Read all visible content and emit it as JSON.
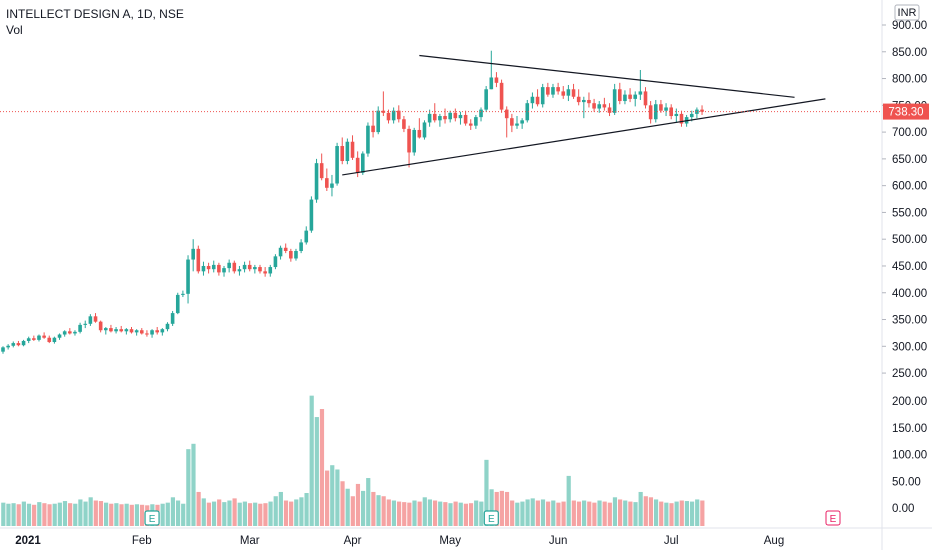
{
  "header": {
    "symbol_line": "INTELLECT DESIGN A, 1D, NSE",
    "volume_label": "Vol"
  },
  "currency_label": "INR",
  "last_price_label": "738.30",
  "event_marker_label": "E",
  "colors": {
    "up": "#26a69a",
    "down": "#ef5350",
    "up_vol": "#8fd3c8",
    "down_vol": "#f5a3a3",
    "price_line": "#ef5350",
    "trend": "#131722",
    "event": "#26a69a",
    "event_future": "#e91e63"
  },
  "chart_data": {
    "type": "candlestick",
    "title": "INTELLECT DESIGN A, 1D, NSE",
    "price_axis": {
      "ticks": [
        900,
        850,
        800,
        750,
        700,
        650,
        600,
        550,
        500,
        450,
        400,
        350,
        300,
        250
      ],
      "labels": [
        "900.00",
        "850.00",
        "800.00",
        "750.00",
        "700.00",
        "650.00",
        "600.00",
        "550.00",
        "500.00",
        "450.00",
        "400.00",
        "350.00",
        "300.00",
        "250.00"
      ]
    },
    "volume_axis": {
      "ticks": [
        200,
        150,
        100,
        50,
        0
      ],
      "labels": [
        "200.00",
        "150.00",
        "100.00",
        "50.00",
        "0.00"
      ]
    },
    "x_axis": {
      "labels": [
        "2021",
        "Feb",
        "Mar",
        "Apr",
        "May",
        "Jun",
        "Jul",
        "Aug"
      ]
    },
    "last_price": 738.3,
    "candles": [
      [
        290,
        300,
        286,
        298,
        10
      ],
      [
        298,
        304,
        294,
        301,
        8
      ],
      [
        301,
        309,
        298,
        306,
        9
      ],
      [
        306,
        310,
        300,
        302,
        7
      ],
      [
        302,
        312,
        300,
        310,
        12
      ],
      [
        310,
        318,
        306,
        315,
        8
      ],
      [
        315,
        320,
        310,
        312,
        6
      ],
      [
        312,
        322,
        309,
        320,
        11
      ],
      [
        320,
        326,
        314,
        316,
        9
      ],
      [
        316,
        320,
        306,
        308,
        7
      ],
      [
        308,
        318,
        305,
        316,
        8
      ],
      [
        316,
        324,
        312,
        322,
        10
      ],
      [
        322,
        330,
        318,
        328,
        13
      ],
      [
        328,
        334,
        322,
        324,
        9
      ],
      [
        324,
        330,
        320,
        327,
        8
      ],
      [
        327,
        344,
        324,
        340,
        16
      ],
      [
        340,
        348,
        334,
        342,
        12
      ],
      [
        342,
        360,
        338,
        356,
        20
      ],
      [
        356,
        362,
        344,
        346,
        14
      ],
      [
        346,
        348,
        326,
        330,
        13
      ],
      [
        330,
        336,
        322,
        334,
        10
      ],
      [
        334,
        340,
        326,
        328,
        8
      ],
      [
        328,
        336,
        324,
        332,
        9
      ],
      [
        332,
        338,
        326,
        328,
        7
      ],
      [
        328,
        334,
        322,
        332,
        8
      ],
      [
        332,
        336,
        324,
        326,
        6
      ],
      [
        326,
        332,
        320,
        330,
        7
      ],
      [
        330,
        334,
        322,
        324,
        6
      ],
      [
        324,
        330,
        318,
        322,
        5
      ],
      [
        322,
        332,
        316,
        330,
        7
      ],
      [
        330,
        336,
        322,
        326,
        6
      ],
      [
        326,
        334,
        320,
        332,
        8
      ],
      [
        332,
        345,
        328,
        342,
        10
      ],
      [
        342,
        366,
        338,
        362,
        20
      ],
      [
        362,
        400,
        360,
        396,
        14
      ],
      [
        396,
        404,
        392,
        398,
        8
      ],
      [
        398,
        470,
        380,
        462,
        110
      ],
      [
        462,
        500,
        440,
        482,
        120
      ],
      [
        482,
        488,
        436,
        440,
        30
      ],
      [
        440,
        458,
        432,
        450,
        18
      ],
      [
        450,
        456,
        436,
        444,
        10
      ],
      [
        444,
        460,
        438,
        452,
        12
      ],
      [
        452,
        456,
        432,
        438,
        16
      ],
      [
        438,
        450,
        430,
        446,
        11
      ],
      [
        446,
        462,
        438,
        456,
        14
      ],
      [
        456,
        460,
        436,
        440,
        18
      ],
      [
        440,
        450,
        432,
        444,
        10
      ],
      [
        444,
        458,
        438,
        452,
        12
      ],
      [
        452,
        460,
        440,
        444,
        9
      ],
      [
        444,
        452,
        436,
        448,
        10
      ],
      [
        448,
        452,
        436,
        440,
        8
      ],
      [
        440,
        448,
        430,
        436,
        9
      ],
      [
        436,
        452,
        430,
        448,
        12
      ],
      [
        448,
        472,
        444,
        468,
        22
      ],
      [
        468,
        488,
        462,
        484,
        30
      ],
      [
        484,
        492,
        474,
        478,
        14
      ],
      [
        478,
        482,
        458,
        464,
        12
      ],
      [
        464,
        482,
        460,
        478,
        16
      ],
      [
        478,
        500,
        474,
        494,
        20
      ],
      [
        494,
        524,
        490,
        516,
        28
      ],
      [
        516,
        580,
        512,
        574,
        210
      ],
      [
        574,
        650,
        568,
        642,
        170
      ],
      [
        642,
        660,
        610,
        614,
        185
      ],
      [
        614,
        632,
        590,
        596,
        70
      ],
      [
        596,
        620,
        580,
        604,
        80
      ],
      [
        604,
        680,
        600,
        674,
        72
      ],
      [
        674,
        690,
        640,
        646,
        50
      ],
      [
        646,
        688,
        640,
        682,
        36
      ],
      [
        682,
        694,
        648,
        652,
        22
      ],
      [
        652,
        664,
        616,
        624,
        45
      ],
      [
        624,
        664,
        620,
        660,
        32
      ],
      [
        660,
        718,
        654,
        712,
        56
      ],
      [
        712,
        740,
        690,
        700,
        30
      ],
      [
        700,
        748,
        696,
        740,
        24
      ],
      [
        740,
        776,
        730,
        736,
        22
      ],
      [
        736,
        742,
        716,
        722,
        16
      ],
      [
        722,
        746,
        716,
        740,
        14
      ],
      [
        740,
        750,
        718,
        724,
        12
      ],
      [
        724,
        730,
        700,
        706,
        11
      ],
      [
        706,
        712,
        634,
        662,
        10
      ],
      [
        662,
        708,
        656,
        704,
        14
      ],
      [
        704,
        726,
        688,
        690,
        12
      ],
      [
        690,
        722,
        686,
        718,
        20
      ],
      [
        718,
        742,
        710,
        734,
        16
      ],
      [
        734,
        754,
        718,
        722,
        14
      ],
      [
        722,
        734,
        710,
        730,
        12
      ],
      [
        730,
        744,
        716,
        724,
        11
      ],
      [
        724,
        740,
        718,
        736,
        9
      ],
      [
        736,
        744,
        720,
        726,
        12
      ],
      [
        726,
        738,
        714,
        732,
        10
      ],
      [
        732,
        740,
        712,
        716,
        8
      ],
      [
        716,
        724,
        704,
        712,
        9
      ],
      [
        712,
        732,
        706,
        728,
        14
      ],
      [
        728,
        746,
        720,
        742,
        12
      ],
      [
        742,
        786,
        738,
        780,
        90
      ],
      [
        780,
        852,
        780,
        802,
        35
      ],
      [
        802,
        812,
        784,
        792,
        30
      ],
      [
        792,
        798,
        736,
        742,
        32
      ],
      [
        742,
        748,
        690,
        726,
        30
      ],
      [
        726,
        734,
        700,
        712,
        14
      ],
      [
        712,
        730,
        706,
        716,
        10
      ],
      [
        716,
        726,
        706,
        722,
        12
      ],
      [
        722,
        760,
        718,
        754,
        16
      ],
      [
        754,
        774,
        744,
        766,
        18
      ],
      [
        766,
        780,
        748,
        752,
        14
      ],
      [
        752,
        790,
        746,
        784,
        16
      ],
      [
        784,
        792,
        766,
        770,
        12
      ],
      [
        770,
        790,
        764,
        784,
        14
      ],
      [
        784,
        792,
        770,
        776,
        10
      ],
      [
        776,
        786,
        762,
        768,
        12
      ],
      [
        768,
        788,
        758,
        780,
        60
      ],
      [
        780,
        790,
        762,
        766,
        14
      ],
      [
        766,
        780,
        750,
        756,
        12
      ],
      [
        756,
        766,
        726,
        760,
        14
      ],
      [
        760,
        774,
        746,
        754,
        12
      ],
      [
        754,
        762,
        738,
        744,
        10
      ],
      [
        744,
        758,
        736,
        752,
        14
      ],
      [
        752,
        764,
        740,
        746,
        12
      ],
      [
        746,
        754,
        730,
        736,
        10
      ],
      [
        736,
        790,
        732,
        780,
        20
      ],
      [
        780,
        792,
        752,
        758,
        16
      ],
      [
        758,
        778,
        752,
        770,
        14
      ],
      [
        770,
        782,
        756,
        762,
        12
      ],
      [
        762,
        776,
        748,
        770,
        11
      ],
      [
        770,
        816,
        760,
        776,
        30
      ],
      [
        776,
        784,
        744,
        750,
        22
      ],
      [
        750,
        758,
        716,
        724,
        20
      ],
      [
        724,
        760,
        718,
        752,
        16
      ],
      [
        752,
        760,
        736,
        740,
        12
      ],
      [
        740,
        754,
        730,
        746,
        10
      ],
      [
        746,
        752,
        724,
        730,
        9
      ],
      [
        730,
        744,
        718,
        734,
        12
      ],
      [
        734,
        740,
        710,
        716,
        14
      ],
      [
        716,
        732,
        710,
        728,
        13
      ],
      [
        728,
        740,
        720,
        734,
        12
      ],
      [
        734,
        746,
        726,
        742,
        16
      ],
      [
        742,
        750,
        732,
        738,
        14
      ]
    ],
    "trendlines": [
      {
        "from": [
          81,
          843
        ],
        "to": [
          154,
          765
        ]
      },
      {
        "from": [
          66,
          620
        ],
        "to": [
          160,
          762
        ]
      }
    ],
    "event_markers_at_candle": [
      29,
      95
    ]
  }
}
